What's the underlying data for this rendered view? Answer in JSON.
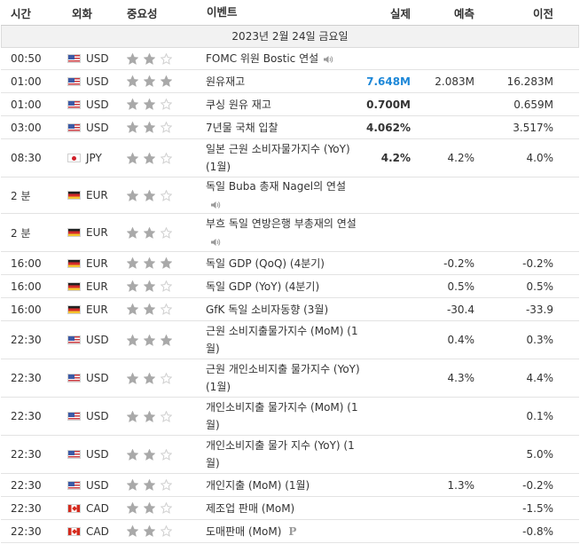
{
  "header": {
    "time": "시간",
    "currency": "외화",
    "importance": "중요성",
    "event": "이벤트",
    "actual": "실제",
    "forecast": "예측",
    "previous": "이전"
  },
  "date_label": "2023년 2월 24일 금요일",
  "colors": {
    "star_filled": "#a9a9a9",
    "star_empty": "#cfcfcf",
    "actual_blue": "#1e88d8"
  },
  "rows": [
    {
      "time": "00:50",
      "flag": "us",
      "currency": "USD",
      "stars": 2,
      "event": "FOMC 위원 Bostic 연설",
      "speaker": true,
      "actual": "",
      "forecast": "",
      "previous": ""
    },
    {
      "time": "01:00",
      "flag": "us",
      "currency": "USD",
      "stars": 3,
      "event": "원유재고",
      "speaker": false,
      "actual": "7.648M",
      "actual_color": "blue",
      "forecast": "2.083M",
      "previous": "16.283M"
    },
    {
      "time": "01:00",
      "flag": "us",
      "currency": "USD",
      "stars": 2,
      "event": "쿠싱 원유 재고",
      "speaker": false,
      "actual": "0.700M",
      "forecast": "",
      "previous": "0.659M"
    },
    {
      "time": "03:00",
      "flag": "us",
      "currency": "USD",
      "stars": 2,
      "event": "7년물 국채 입찰",
      "speaker": false,
      "actual": "4.062%",
      "forecast": "",
      "previous": "3.517%"
    },
    {
      "time": "08:30",
      "flag": "jp",
      "currency": "JPY",
      "stars": 2,
      "event": "일본 근원 소비자물가지수 (YoY) (1월)",
      "speaker": false,
      "actual": "4.2%",
      "forecast": "4.2%",
      "previous": "4.0%"
    },
    {
      "time": "2 분",
      "flag": "de",
      "currency": "EUR",
      "stars": 2,
      "event": "독일 Buba 총재 Nagel의 연설",
      "speaker": true,
      "actual": "",
      "forecast": "",
      "previous": ""
    },
    {
      "time": "2 분",
      "flag": "de",
      "currency": "EUR",
      "stars": 2,
      "event": "부흐 독일 연방은행 부총재의 연설",
      "speaker": true,
      "actual": "",
      "forecast": "",
      "previous": ""
    },
    {
      "time": "16:00",
      "flag": "de",
      "currency": "EUR",
      "stars": 3,
      "event": "독일 GDP (QoQ) (4분기)",
      "speaker": false,
      "actual": "",
      "forecast": "-0.2%",
      "previous": "-0.2%"
    },
    {
      "time": "16:00",
      "flag": "de",
      "currency": "EUR",
      "stars": 2,
      "event": "독일 GDP (YoY) (4분기)",
      "speaker": false,
      "actual": "",
      "forecast": "0.5%",
      "previous": "0.5%"
    },
    {
      "time": "16:00",
      "flag": "de",
      "currency": "EUR",
      "stars": 2,
      "event": "GfK 독일 소비자동향 (3월)",
      "speaker": false,
      "actual": "",
      "forecast": "-30.4",
      "previous": "-33.9"
    },
    {
      "time": "22:30",
      "flag": "us",
      "currency": "USD",
      "stars": 3,
      "event": "근원 소비지출물가지수 (MoM) (1월)",
      "speaker": false,
      "actual": "",
      "forecast": "0.4%",
      "previous": "0.3%"
    },
    {
      "time": "22:30",
      "flag": "us",
      "currency": "USD",
      "stars": 2,
      "event": "근원 개인소비지출 물가지수 (YoY) (1월)",
      "speaker": false,
      "actual": "",
      "forecast": "4.3%",
      "previous": "4.4%"
    },
    {
      "time": "22:30",
      "flag": "us",
      "currency": "USD",
      "stars": 2,
      "event": "개인소비지출 물가지수 (MoM) (1월)",
      "speaker": false,
      "actual": "",
      "forecast": "",
      "previous": "0.1%"
    },
    {
      "time": "22:30",
      "flag": "us",
      "currency": "USD",
      "stars": 2,
      "event": "개인소비지출 물가 지수 (YoY) (1월)",
      "speaker": false,
      "actual": "",
      "forecast": "",
      "previous": "5.0%"
    },
    {
      "time": "22:30",
      "flag": "us",
      "currency": "USD",
      "stars": 2,
      "event": "개인지출 (MoM) (1월)",
      "speaker": false,
      "actual": "",
      "forecast": "1.3%",
      "previous": "-0.2%"
    },
    {
      "time": "22:30",
      "flag": "ca",
      "currency": "CAD",
      "stars": 2,
      "event": "제조업 판매 (MoM)",
      "speaker": false,
      "actual": "",
      "forecast": "",
      "previous": "-1.5%"
    },
    {
      "time": "22:30",
      "flag": "ca",
      "currency": "CAD",
      "stars": 2,
      "event": "도매판매 (MoM)",
      "speaker": false,
      "preliminary": "P",
      "actual": "",
      "forecast": "",
      "previous": "-0.8%"
    }
  ]
}
